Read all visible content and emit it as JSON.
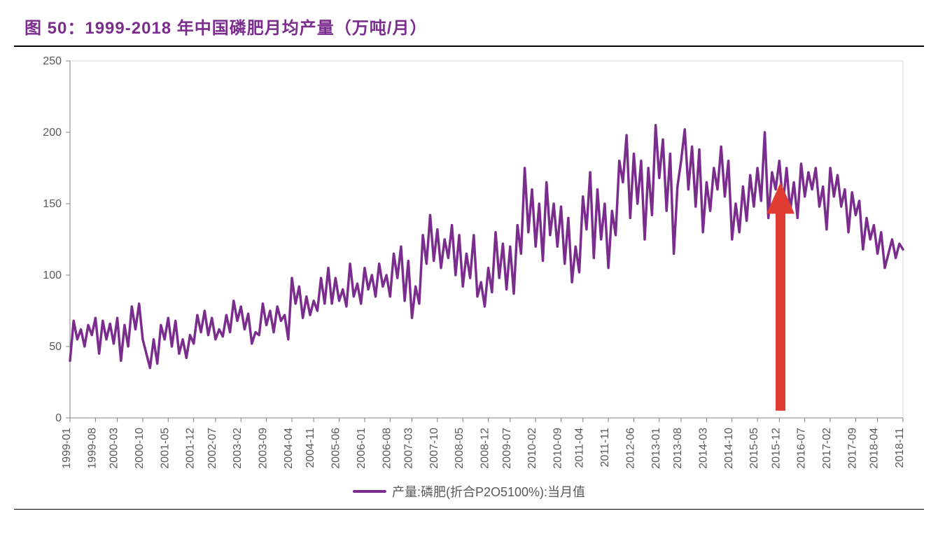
{
  "title": "图 50：1999-2018 年中国磷肥月均产量（万吨/月）",
  "chart": {
    "type": "line",
    "series_color": "#7b2d8e",
    "line_width": 3.5,
    "background_color": "#ffffff",
    "plot_border_color": "#d9d9d9",
    "axis_color": "#808080",
    "tick_label_color": "#595959",
    "tick_fontsize": 16,
    "title_color": "#7b2d8e",
    "title_fontsize": 24,
    "title_fontweight": "bold",
    "ylim": [
      0,
      250
    ],
    "ytick_step": 50,
    "y_ticks": [
      0,
      50,
      100,
      150,
      200,
      250
    ],
    "x_categories": [
      "1999-01",
      "1999-08",
      "2000-03",
      "2000-10",
      "2001-05",
      "2001-12",
      "2002-07",
      "2003-02",
      "2003-09",
      "2004-04",
      "2004-11",
      "2005-06",
      "2006-01",
      "2006-08",
      "2007-03",
      "2007-10",
      "2008-05",
      "2008-12",
      "2009-07",
      "2010-02",
      "2010-09",
      "2011-04",
      "2011-11",
      "2012-06",
      "2013-01",
      "2013-08",
      "2014-03",
      "2014-10",
      "2015-05",
      "2015-12",
      "2016-07",
      "2017-02",
      "2017-09",
      "2018-04",
      "2018-11"
    ],
    "values": [
      40,
      68,
      55,
      62,
      50,
      65,
      58,
      70,
      45,
      68,
      55,
      66,
      52,
      70,
      40,
      65,
      50,
      78,
      62,
      80,
      55,
      45,
      35,
      55,
      38,
      65,
      55,
      70,
      50,
      68,
      45,
      55,
      42,
      58,
      52,
      72,
      60,
      75,
      58,
      70,
      55,
      62,
      57,
      72,
      60,
      82,
      68,
      78,
      62,
      73,
      52,
      60,
      58,
      80,
      65,
      75,
      60,
      78,
      68,
      72,
      55,
      98,
      80,
      92,
      70,
      85,
      72,
      82,
      75,
      98,
      80,
      105,
      80,
      98,
      82,
      90,
      78,
      108,
      85,
      94,
      80,
      105,
      90,
      100,
      85,
      108,
      92,
      100,
      85,
      115,
      98,
      120,
      82,
      110,
      70,
      92,
      80,
      128,
      108,
      142,
      110,
      132,
      105,
      125,
      112,
      135,
      100,
      128,
      92,
      115,
      98,
      128,
      85,
      95,
      78,
      105,
      88,
      130,
      98,
      122,
      90,
      120,
      87,
      135,
      115,
      175,
      130,
      160,
      120,
      150,
      110,
      165,
      128,
      150,
      120,
      148,
      108,
      140,
      95,
      120,
      102,
      155,
      132,
      172,
      112,
      160,
      125,
      150,
      105,
      145,
      128,
      180,
      165,
      198,
      140,
      185,
      150,
      180,
      125,
      175,
      142,
      205,
      168,
      195,
      145,
      185,
      115,
      162,
      180,
      202,
      160,
      190,
      148,
      188,
      130,
      165,
      145,
      175,
      160,
      190,
      155,
      180,
      125,
      150,
      130,
      162,
      138,
      170,
      148,
      175,
      152,
      200,
      140,
      172,
      160,
      180,
      150,
      175,
      145,
      165,
      140,
      178,
      155,
      172,
      160,
      175,
      148,
      162,
      132,
      175,
      155,
      170,
      148,
      160,
      130,
      158,
      142,
      152,
      118,
      140,
      125,
      135,
      115,
      130,
      105,
      115,
      125,
      112,
      122,
      118
    ],
    "arrow": {
      "x_index_approx": 29,
      "y_base": 5,
      "y_tip": 165,
      "color": "#e03c31",
      "shaft_width": 14,
      "head_width": 40,
      "head_height": 45
    },
    "legend": {
      "label": "产量:磷肥(折合P2O5100%):当月值",
      "line_color": "#7b2d8e"
    }
  }
}
